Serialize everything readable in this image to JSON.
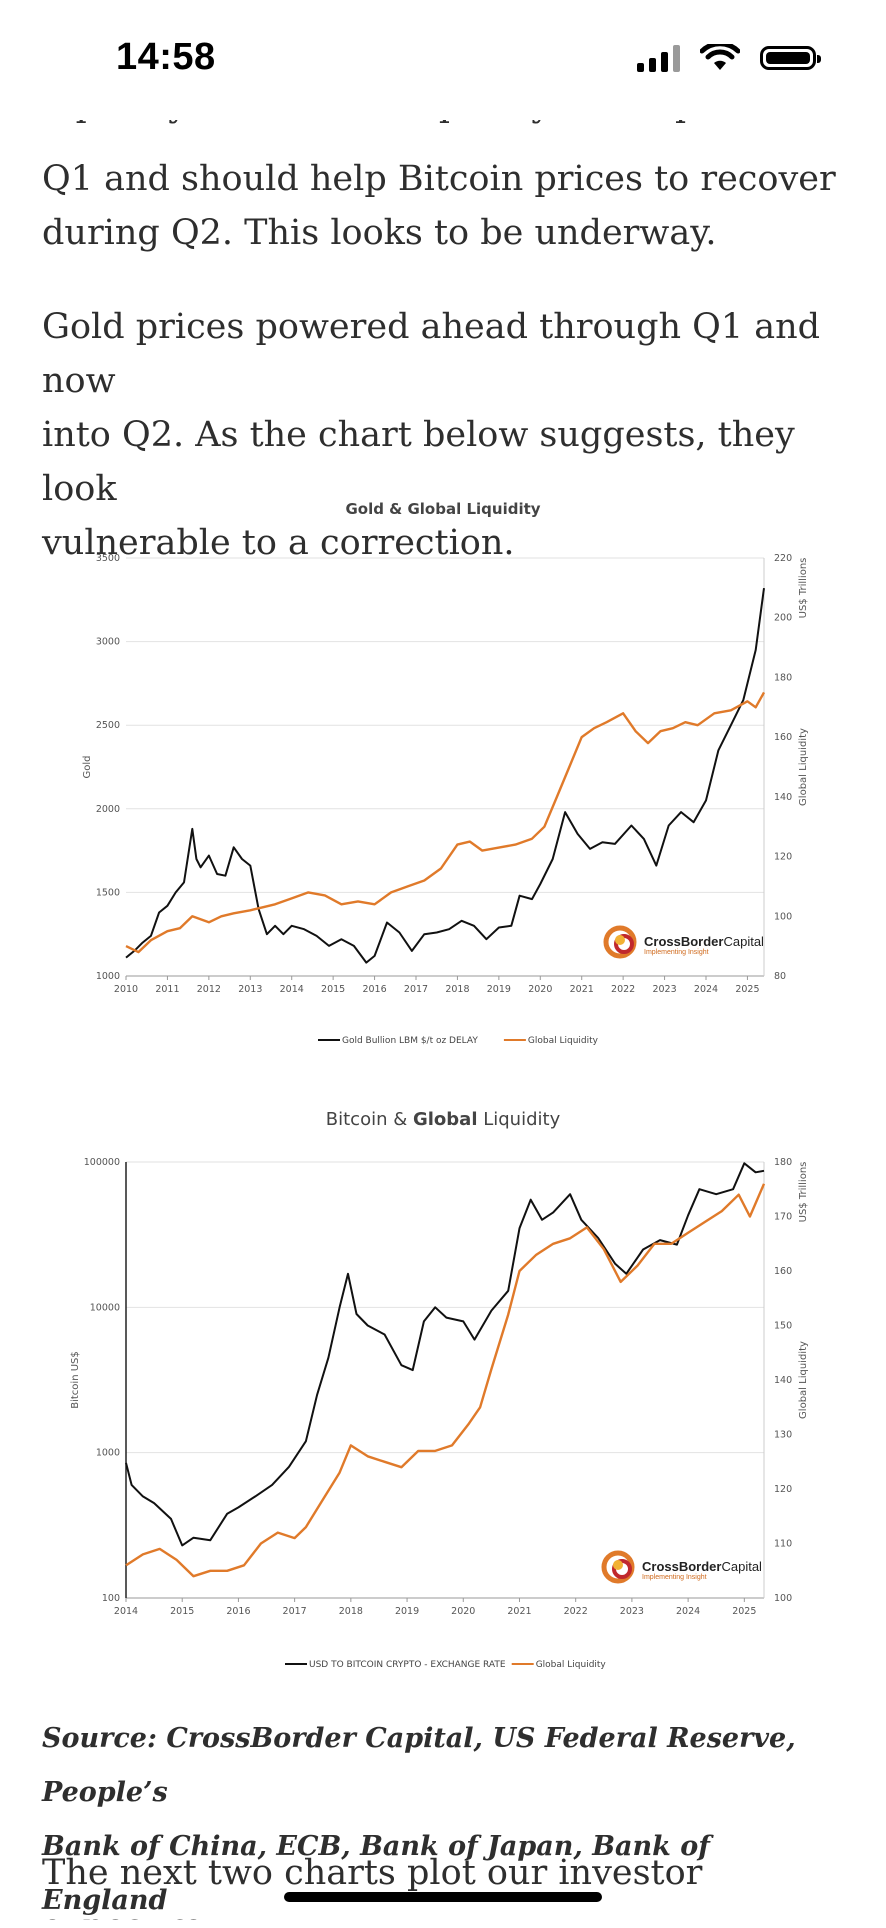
{
  "status_bar": {
    "time": "14:58"
  },
  "article": {
    "partial_top_line": "liquidity downturn. Liquidity levels picked up in",
    "para1_lines": [
      "Q1 and should help Bitcoin prices to recover",
      "during Q2. This looks to be underway."
    ],
    "para2_lines": [
      "Gold prices powered ahead through Q1 and now",
      "into Q2. As the chart below suggests, they look",
      "vulnerable to a correction."
    ],
    "source_lines": [
      "Source: CrossBorder Capital, US Federal Reserve, People’s",
      "Bank of China, ECB, Bank of Japan, Bank of England"
    ],
    "partial_bottom_line": "The next two charts plot our investor exposure"
  },
  "logo": {
    "brand_a": "CrossBorder",
    "brand_b": "Capital",
    "tagline": "Implementing Insight"
  },
  "colors": {
    "gold_line": "#111111",
    "liquidity_line": "#e07a2a",
    "bitcoin_line": "#111111"
  },
  "chart_data": [
    {
      "type": "line",
      "title": "Gold & Global Liquidity",
      "ylabel_left": "Gold",
      "ylabel_right_top": "US$ Trillions",
      "ylabel_right": "Global Liquidity",
      "x_ticks": [
        "2010",
        "2011",
        "2012",
        "2013",
        "2014",
        "2015",
        "2016",
        "2017",
        "2018",
        "2019",
        "2020",
        "2021",
        "2022",
        "2023",
        "2024",
        "2025"
      ],
      "xlim": [
        2010,
        2025.4
      ],
      "ylim_left": [
        1000,
        3500
      ],
      "yticks_left": [
        "1000",
        "1500",
        "2000",
        "2500",
        "3000",
        "3500"
      ],
      "ylim_right": [
        80,
        220
      ],
      "yticks_right": [
        "80",
        "100",
        "120",
        "140",
        "160",
        "180",
        "200",
        "220"
      ],
      "series": [
        {
          "name": "Gold Bullion LBM $/t oz DELAY",
          "axis": "left",
          "x": [
            2010.0,
            2010.2,
            2010.4,
            2010.6,
            2010.8,
            2011.0,
            2011.2,
            2011.4,
            2011.6,
            2011.7,
            2011.8,
            2012.0,
            2012.2,
            2012.4,
            2012.6,
            2012.8,
            2013.0,
            2013.2,
            2013.4,
            2013.6,
            2013.8,
            2014.0,
            2014.3,
            2014.6,
            2014.9,
            2015.2,
            2015.5,
            2015.8,
            2016.0,
            2016.3,
            2016.6,
            2016.9,
            2017.2,
            2017.5,
            2017.8,
            2018.1,
            2018.4,
            2018.7,
            2019.0,
            2019.3,
            2019.5,
            2019.8,
            2020.0,
            2020.3,
            2020.6,
            2020.9,
            2021.2,
            2021.5,
            2021.8,
            2022.2,
            2022.5,
            2022.8,
            2023.1,
            2023.4,
            2023.7,
            2024.0,
            2024.3,
            2024.6,
            2024.9,
            2025.2,
            2025.4
          ],
          "y": [
            1110,
            1150,
            1200,
            1240,
            1380,
            1420,
            1500,
            1560,
            1880,
            1700,
            1650,
            1720,
            1610,
            1600,
            1770,
            1700,
            1660,
            1400,
            1250,
            1300,
            1250,
            1300,
            1280,
            1240,
            1180,
            1220,
            1180,
            1080,
            1120,
            1320,
            1260,
            1150,
            1250,
            1260,
            1280,
            1330,
            1300,
            1220,
            1290,
            1300,
            1480,
            1460,
            1550,
            1700,
            1980,
            1850,
            1760,
            1800,
            1790,
            1900,
            1820,
            1660,
            1900,
            1980,
            1920,
            2050,
            2350,
            2500,
            2650,
            2950,
            3320
          ]
        },
        {
          "name": "Global Liquidity",
          "axis": "right",
          "x": [
            2010.0,
            2010.3,
            2010.6,
            2011.0,
            2011.3,
            2011.6,
            2012.0,
            2012.3,
            2012.6,
            2013.0,
            2013.3,
            2013.6,
            2014.0,
            2014.4,
            2014.8,
            2015.2,
            2015.6,
            2016.0,
            2016.4,
            2016.8,
            2017.2,
            2017.6,
            2018.0,
            2018.3,
            2018.6,
            2019.0,
            2019.4,
            2019.8,
            2020.1,
            2020.4,
            2020.7,
            2021.0,
            2021.3,
            2021.6,
            2022.0,
            2022.3,
            2022.6,
            2022.9,
            2023.2,
            2023.5,
            2023.8,
            2024.2,
            2024.6,
            2025.0,
            2025.2,
            2025.4
          ],
          "y": [
            90,
            88,
            92,
            95,
            96,
            100,
            98,
            100,
            101,
            102,
            103,
            104,
            106,
            108,
            107,
            104,
            105,
            104,
            108,
            110,
            112,
            116,
            124,
            125,
            122,
            123,
            124,
            126,
            130,
            140,
            150,
            160,
            163,
            165,
            168,
            162,
            158,
            162,
            163,
            165,
            164,
            168,
            169,
            172,
            170,
            175
          ]
        }
      ]
    },
    {
      "type": "line",
      "title": "Bitcoin & Global Liquidity",
      "ylabel_left": "Bitcoin US$",
      "ylabel_right_top": "US$ Trillions",
      "ylabel_right": "Global Liquidity",
      "y_scale_left": "log",
      "x_ticks": [
        "2014",
        "2015",
        "2016",
        "2017",
        "2018",
        "2019",
        "2020",
        "2021",
        "2022",
        "2023",
        "2024",
        "2025"
      ],
      "xlim": [
        2014,
        2025.35
      ],
      "ylim_left": [
        100,
        100000
      ],
      "yticks_left": [
        "100",
        "1000",
        "10000",
        "100000"
      ],
      "ylim_right": [
        100,
        180
      ],
      "yticks_right": [
        "100",
        "110",
        "120",
        "130",
        "140",
        "150",
        "160",
        "170",
        "180"
      ],
      "series": [
        {
          "name": "USD TO BITCOIN CRYPTO - EXCHANGE RATE",
          "axis": "left",
          "x": [
            2014.0,
            2014.1,
            2014.3,
            2014.5,
            2014.8,
            2015.0,
            2015.2,
            2015.5,
            2015.8,
            2016.0,
            2016.3,
            2016.6,
            2016.9,
            2017.2,
            2017.4,
            2017.6,
            2017.8,
            2017.95,
            2018.1,
            2018.3,
            2018.6,
            2018.9,
            2019.1,
            2019.3,
            2019.5,
            2019.7,
            2020.0,
            2020.2,
            2020.5,
            2020.8,
            2021.0,
            2021.2,
            2021.4,
            2021.6,
            2021.9,
            2022.1,
            2022.4,
            2022.7,
            2022.9,
            2023.2,
            2023.5,
            2023.8,
            2024.0,
            2024.2,
            2024.5,
            2024.8,
            2025.0,
            2025.2,
            2025.35
          ],
          "y": [
            850,
            600,
            500,
            450,
            350,
            230,
            260,
            250,
            380,
            420,
            500,
            600,
            800,
            1200,
            2500,
            4500,
            10000,
            17000,
            9000,
            7500,
            6500,
            4000,
            3700,
            8000,
            10000,
            8500,
            8000,
            6000,
            9500,
            13000,
            35000,
            55000,
            40000,
            45000,
            60000,
            40000,
            30000,
            20000,
            17000,
            25000,
            29000,
            27000,
            43000,
            65000,
            60000,
            65000,
            98000,
            85000,
            87000
          ]
        },
        {
          "name": "Global Liquidity",
          "axis": "right",
          "x": [
            2014.0,
            2014.3,
            2014.6,
            2014.9,
            2015.2,
            2015.5,
            2015.8,
            2016.1,
            2016.4,
            2016.7,
            2017.0,
            2017.2,
            2017.5,
            2017.8,
            2018.0,
            2018.3,
            2018.6,
            2018.9,
            2019.2,
            2019.5,
            2019.8,
            2020.1,
            2020.3,
            2020.5,
            2020.8,
            2021.0,
            2021.3,
            2021.6,
            2021.9,
            2022.2,
            2022.5,
            2022.8,
            2023.1,
            2023.4,
            2023.7,
            2024.0,
            2024.3,
            2024.6,
            2024.9,
            2025.1,
            2025.35
          ],
          "y": [
            106,
            108,
            109,
            107,
            104,
            105,
            105,
            106,
            110,
            112,
            111,
            113,
            118,
            123,
            128,
            126,
            125,
            124,
            127,
            127,
            128,
            132,
            135,
            142,
            152,
            160,
            163,
            165,
            166,
            168,
            164,
            158,
            161,
            165,
            165,
            167,
            169,
            171,
            174,
            170,
            176
          ]
        }
      ]
    }
  ]
}
